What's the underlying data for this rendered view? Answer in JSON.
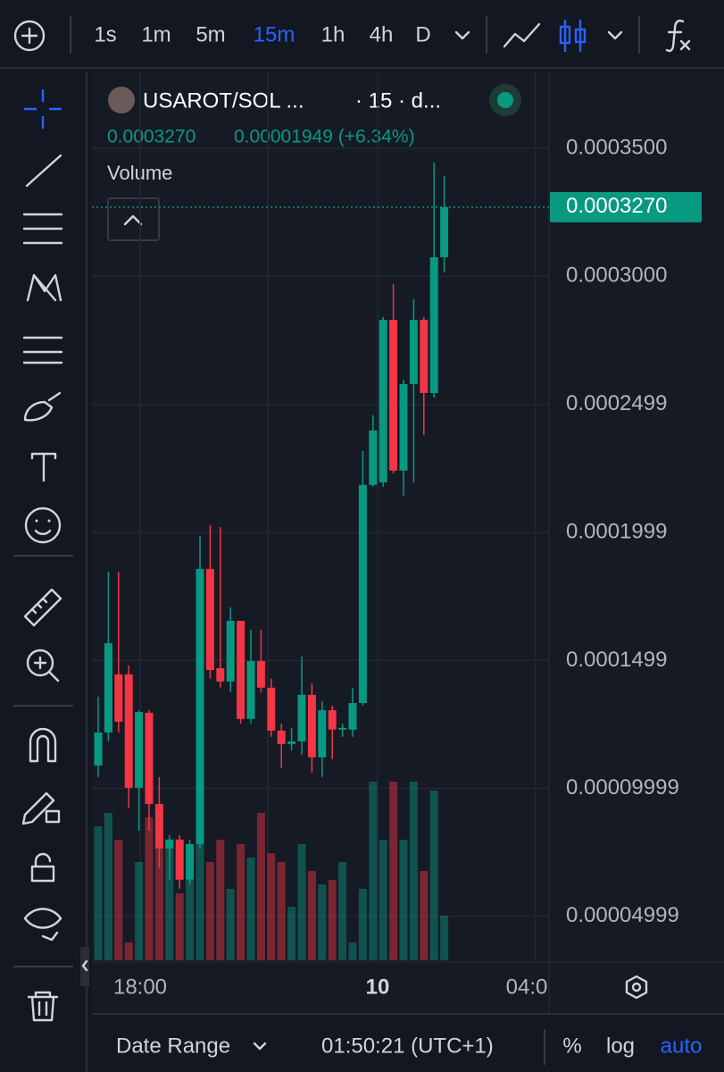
{
  "toolbar": {
    "intervals": [
      "1s",
      "1m",
      "5m",
      "15m",
      "1h",
      "4h",
      "D"
    ],
    "active_interval": 3
  },
  "legend": {
    "symbol": "USAROT/SOL ...",
    "interval": "· 15 · d...",
    "close": "0.0003270",
    "change": "0.00001949 (+6.34%)",
    "volume_label": "Volume"
  },
  "chart_data": {
    "type": "candlestick",
    "open": [
      0.0001089,
      0.0001218,
      0.0001445,
      0.0001445,
      0.0001002,
      0.0001295,
      9.39e-05,
      7.65e-05,
      8e-05,
      6.43e-05,
      7.82e-05,
      0.0001857,
      0.0001469,
      0.0001417,
      0.0001654,
      0.0001271,
      0.0001497,
      0.0001393,
      0.0001225,
      0.0001173,
      0.0001183,
      0.0001365,
      0.0001121,
      0.0001305,
      0.0001229,
      0.0001229,
      0.0001333,
      0.0002185,
      0.0002195,
      0.000283,
      0.0002241,
      0.0002579,
      0.000283,
      0.0002544,
      0.0003074
    ],
    "high": [
      0.0001358,
      0.0001846,
      0.0001846,
      0.000148,
      0.0001305,
      0.0001305,
      0.0001044,
      8.17e-05,
      8.17e-05,
      8e-05,
      0.0001986,
      0.0002028,
      0.0002021,
      0.0001707,
      0.0001654,
      0.0001619,
      0.0001619,
      0.0001428,
      0.0001253,
      0.0001236,
      0.0001515,
      0.000141,
      0.000134,
      0.0001323,
      0.0001253,
      0.0001393,
      0.0002317,
      0.0002457,
      0.0002841,
      0.000297,
      0.0002596,
      0.000291,
      0.0002841,
      0.0003444,
      0.0003392
    ],
    "low": [
      0.0001044,
      0.0001183,
      0.0001218,
      9.22e-05,
      8.34e-05,
      8.34e-05,
      6.88e-05,
      6.43e-05,
      6.08e-05,
      6.25e-05,
      7.65e-05,
      0.0001428,
      0.0001393,
      0.0001375,
      0.0001253,
      0.0001253,
      0.0001375,
      0.0001201,
      0.0001079,
      0.0001148,
      0.0001131,
      0.0001061,
      0.0001044,
      0.0001114,
      0.0001201,
      0.0001201,
      0.0001323,
      0.0002178,
      0.0002178,
      0.000223,
      0.0002143,
      0.0002195,
      0.000238,
      0.0002527,
      0.0003015
    ],
    "close": [
      0.0001218,
      0.0001567,
      0.000126,
      0.0001002,
      0.0001298,
      9.39e-05,
      7.65e-05,
      8e-05,
      6.43e-05,
      7.82e-05,
      0.0001857,
      0.0001462,
      0.0001417,
      0.0001654,
      0.0001271,
      0.0001497,
      0.0001393,
      0.0001225,
      0.0001173,
      0.0001183,
      0.0001365,
      0.0001121,
      0.0001305,
      0.0001229,
      0.0001236,
      0.0001333,
      0.0002185,
      0.0002398,
      0.000283,
      0.0002241,
      0.0002579,
      0.000283,
      0.0002544,
      0.0003074,
      0.000327
    ],
    "volume": [
      150,
      165,
      135,
      20,
      110,
      160,
      140,
      135,
      75,
      90,
      140,
      110,
      135,
      80,
      130,
      115,
      165,
      120,
      110,
      60,
      130,
      100,
      85,
      90,
      110,
      20,
      80,
      200,
      135,
      200,
      135,
      200,
      100,
      190,
      50
    ],
    "up_color": "#089981",
    "down_color": "#f23645",
    "ylim": [
      3.28e-05,
      0.00038
    ],
    "yticks": [
      {
        "value": 0.00035,
        "label": "0.0003500"
      },
      {
        "value": 0.0003,
        "label": "0.0003000"
      },
      {
        "value": 0.0002499,
        "label": "0.0002499"
      },
      {
        "value": 0.0001999,
        "label": "0.0001999"
      },
      {
        "value": 0.0001499,
        "label": "0.0001499"
      },
      {
        "value": 9.999e-05,
        "label": "0.00009999"
      },
      {
        "value": 4.999e-05,
        "label": "0.00004999"
      }
    ],
    "last_price": {
      "value": 0.000327,
      "label": "0.0003270"
    },
    "grid": true
  },
  "time_axis": {
    "labels": [
      "18:00",
      "10",
      "04:0"
    ]
  },
  "bottom_bar": {
    "date_range": "Date Range",
    "clock": "01:50:21 (UTC+1)",
    "percent": "%",
    "log": "log",
    "auto": "auto"
  }
}
